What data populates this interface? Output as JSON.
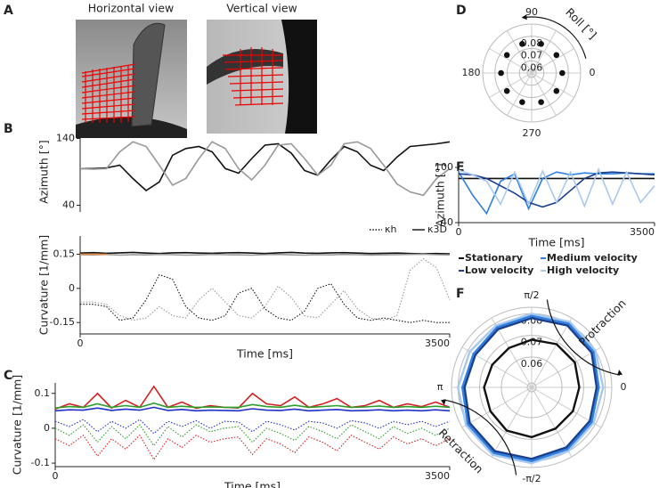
{
  "panel_labels": [
    "A",
    "B",
    "C",
    "D",
    "E",
    "F"
  ],
  "image_titles": [
    "Horizontal view",
    "Vertical view"
  ],
  "chart_data": [
    {
      "type": "line",
      "ylabel": "Azimuth [°]",
      "xlim": [
        0,
        3500
      ],
      "ylim": [
        30,
        150
      ],
      "yticks": [
        40,
        140
      ],
      "x": [
        0,
        125,
        250,
        375,
        500,
        625,
        750,
        875,
        1000,
        1125,
        1250,
        1375,
        1500,
        1625,
        1750,
        1875,
        2000,
        2125,
        2250,
        2375,
        2500,
        2625,
        2750,
        2875,
        3000,
        3125,
        3250,
        3375,
        3500
      ],
      "series": [
        {
          "color": "#111111",
          "values": [
            95,
            95,
            96,
            100,
            80,
            62,
            75,
            115,
            125,
            128,
            120,
            95,
            88,
            110,
            130,
            132,
            118,
            92,
            85,
            108,
            128,
            120,
            100,
            92,
            112,
            128,
            130,
            132,
            135
          ]
        },
        {
          "color": "#999999",
          "values": [
            95,
            94,
            95,
            120,
            135,
            128,
            100,
            70,
            80,
            110,
            135,
            125,
            95,
            78,
            100,
            130,
            132,
            110,
            85,
            100,
            132,
            135,
            125,
            100,
            72,
            60,
            55,
            80,
            95
          ]
        }
      ]
    },
    {
      "type": "line",
      "ylabel": "Curvature [1/mm]",
      "xlabel": "Time [ms]",
      "xlim": [
        0,
        3500
      ],
      "xticks": [
        0,
        3500
      ],
      "ylim": [
        -0.2,
        0.23
      ],
      "yticks": [
        -0.15,
        0,
        0.15
      ],
      "legend": [
        {
          "name": "κh",
          "dash": "dotted"
        },
        {
          "name": "κ3D",
          "dash": "solid"
        }
      ],
      "x": [
        0,
        125,
        250,
        375,
        500,
        625,
        750,
        875,
        1000,
        1125,
        1250,
        1375,
        1500,
        1625,
        1750,
        1875,
        2000,
        2125,
        2250,
        2375,
        2500,
        2625,
        2750,
        2875,
        3000,
        3125,
        3250,
        3375,
        3500
      ],
      "series": [
        {
          "color": "#111111",
          "dash": "solid",
          "values": [
            0.155,
            0.157,
            0.154,
            0.156,
            0.158,
            0.155,
            0.153,
            0.156,
            0.157,
            0.155,
            0.154,
            0.156,
            0.157,
            0.155,
            0.153,
            0.156,
            0.158,
            0.155,
            0.154,
            0.156,
            0.157,
            0.155,
            0.153,
            0.154,
            0.155,
            0.153,
            0.152,
            0.153,
            0.152
          ]
        },
        {
          "color": "#999999",
          "dash": "solid",
          "values": [
            0.148,
            0.147,
            0.149,
            0.146,
            0.148,
            0.147,
            0.149,
            0.148,
            0.146,
            0.147,
            0.149,
            0.148,
            0.147,
            0.146,
            0.148,
            0.149,
            0.147,
            0.146,
            0.148,
            0.147,
            0.149,
            0.148,
            0.146,
            0.147,
            0.148,
            0.149,
            0.15,
            0.148,
            0.147
          ]
        },
        {
          "color": "#e8873a",
          "dash": "solid",
          "values": [
            0.15,
            0.15,
            0.15,
            null,
            null,
            null,
            null,
            null,
            null,
            null,
            null,
            null,
            null,
            null,
            null,
            null,
            null,
            null,
            null,
            null,
            null,
            null,
            null,
            null,
            null,
            null,
            null,
            null,
            null
          ]
        },
        {
          "color": "#111111",
          "dash": "dotted",
          "values": [
            -0.07,
            -0.07,
            -0.08,
            -0.14,
            -0.13,
            -0.05,
            0.06,
            0.04,
            -0.08,
            -0.13,
            -0.14,
            -0.12,
            -0.02,
            0.0,
            -0.09,
            -0.13,
            -0.14,
            -0.1,
            0.0,
            0.02,
            -0.07,
            -0.13,
            -0.14,
            -0.13,
            -0.14,
            -0.15,
            -0.14,
            -0.15,
            -0.15
          ]
        },
        {
          "color": "#999999",
          "dash": "dotted",
          "values": [
            -0.06,
            -0.06,
            -0.07,
            -0.12,
            -0.14,
            -0.13,
            -0.08,
            -0.12,
            -0.13,
            -0.05,
            0.0,
            -0.06,
            -0.12,
            -0.13,
            -0.08,
            0.01,
            -0.04,
            -0.12,
            -0.13,
            -0.07,
            -0.01,
            -0.09,
            -0.13,
            -0.14,
            -0.12,
            0.08,
            0.13,
            0.09,
            -0.05
          ]
        }
      ]
    },
    {
      "type": "line",
      "ylabel": "Curvature [1/mm]",
      "xlabel": "Time [ms]",
      "xlim": [
        0,
        3500
      ],
      "xticks": [
        0,
        3500
      ],
      "ylim": [
        -0.11,
        0.13
      ],
      "yticks": [
        -0.1,
        0,
        0.1
      ],
      "x": [
        0,
        125,
        250,
        375,
        500,
        625,
        750,
        875,
        1000,
        1125,
        1250,
        1375,
        1500,
        1625,
        1750,
        1875,
        2000,
        2125,
        2250,
        2375,
        2500,
        2625,
        2750,
        2875,
        3000,
        3125,
        3250,
        3375,
        3500
      ],
      "series": [
        {
          "color": "#d42020",
          "dash": "solid",
          "values": [
            0.055,
            0.07,
            0.06,
            0.1,
            0.058,
            0.08,
            0.06,
            0.12,
            0.06,
            0.075,
            0.057,
            0.065,
            0.06,
            0.058,
            0.1,
            0.07,
            0.065,
            0.09,
            0.06,
            0.07,
            0.085,
            0.06,
            0.065,
            0.08,
            0.06,
            0.07,
            0.062,
            0.075,
            0.06
          ]
        },
        {
          "color": "#2ca02c",
          "dash": "solid",
          "values": [
            0.058,
            0.062,
            0.06,
            0.07,
            0.06,
            0.065,
            0.06,
            0.072,
            0.06,
            0.063,
            0.06,
            0.061,
            0.06,
            0.06,
            0.068,
            0.062,
            0.06,
            0.066,
            0.06,
            0.062,
            0.065,
            0.06,
            0.061,
            0.064,
            0.06,
            0.062,
            0.06,
            0.063,
            0.06
          ]
        },
        {
          "color": "#2030c8",
          "dash": "solid",
          "values": [
            0.05,
            0.053,
            0.052,
            0.058,
            0.051,
            0.055,
            0.052,
            0.06,
            0.051,
            0.054,
            0.05,
            0.052,
            0.051,
            0.05,
            0.056,
            0.052,
            0.051,
            0.055,
            0.05,
            0.052,
            0.054,
            0.05,
            0.051,
            0.053,
            0.05,
            0.052,
            0.05,
            0.053,
            0.05
          ]
        },
        {
          "color": "#2030c8",
          "dash": "dotted",
          "values": [
            0.02,
            0.005,
            0.025,
            -0.01,
            0.02,
            0.0,
            0.025,
            -0.015,
            0.02,
            0.005,
            0.022,
            0.0,
            0.02,
            0.018,
            -0.01,
            0.02,
            0.01,
            -0.005,
            0.02,
            0.015,
            0.0,
            0.022,
            0.015,
            0.0,
            0.02,
            0.01,
            0.02,
            0.005,
            0.02
          ]
        },
        {
          "color": "#2ca02c",
          "dash": "dotted",
          "values": [
            0.0,
            -0.02,
            0.01,
            -0.04,
            0.005,
            -0.03,
            0.01,
            -0.05,
            0.005,
            -0.025,
            0.01,
            -0.01,
            0.0,
            0.005,
            -0.04,
            0.0,
            -0.015,
            -0.035,
            0.005,
            -0.01,
            -0.03,
            0.01,
            -0.01,
            -0.03,
            0.005,
            -0.015,
            0.0,
            -0.02,
            0.0
          ]
        },
        {
          "color": "#d42020",
          "dash": "dotted",
          "values": [
            -0.03,
            -0.05,
            -0.02,
            -0.08,
            -0.03,
            -0.06,
            -0.02,
            -0.09,
            -0.03,
            -0.055,
            -0.02,
            -0.04,
            -0.03,
            -0.025,
            -0.075,
            -0.03,
            -0.045,
            -0.07,
            -0.025,
            -0.04,
            -0.065,
            -0.02,
            -0.04,
            -0.06,
            -0.025,
            -0.045,
            -0.03,
            -0.05,
            -0.03
          ]
        }
      ]
    },
    {
      "type": "polar-scatter",
      "annotation": "Roll [°]",
      "rlim": [
        0.05,
        0.09
      ],
      "rticks": [
        0.06,
        0.07,
        0.08
      ],
      "thetaticks": [
        0,
        90,
        180,
        270
      ],
      "color": "#111111",
      "theta": [
        0,
        36,
        72,
        108,
        144,
        180,
        216,
        252,
        288,
        324
      ],
      "r": [
        0.075,
        0.075,
        0.075,
        0.075,
        0.075,
        0.075,
        0.075,
        0.075,
        0.075,
        0.075
      ]
    },
    {
      "type": "line",
      "ylabel": "Azimuth [°]",
      "xlabel": "Time [ms]",
      "xlim": [
        0,
        3500
      ],
      "xticks": [
        0,
        3500
      ],
      "ylim": [
        40,
        100
      ],
      "yticks": [
        40,
        100
      ],
      "x": [
        0,
        250,
        500,
        750,
        1000,
        1250,
        1500,
        1750,
        2000,
        2250,
        2500,
        2750,
        3000,
        3250,
        3500
      ],
      "series": [
        {
          "name": "Stationary",
          "color": "#111111",
          "values": [
            88,
            88,
            88,
            88,
            88,
            88,
            88,
            88,
            88,
            88,
            88,
            88,
            88,
            88,
            88
          ]
        },
        {
          "name": "Medium velocity",
          "color": "#2f80e0",
          "values": [
            95,
            70,
            50,
            85,
            93,
            55,
            88,
            95,
            92,
            94,
            93,
            93,
            94,
            93,
            93
          ]
        },
        {
          "name": "Low velocity",
          "color": "#1a3f8f",
          "values": [
            93,
            92,
            88,
            80,
            72,
            62,
            57,
            62,
            75,
            88,
            94,
            95,
            94,
            93,
            92
          ]
        },
        {
          "name": "High velocity",
          "color": "#a8c8ef",
          "values": [
            97,
            92,
            85,
            60,
            95,
            60,
            96,
            62,
            95,
            58,
            98,
            60,
            95,
            62,
            80
          ]
        }
      ]
    },
    {
      "type": "polar-line",
      "annotations": [
        "Protraction",
        "Retraction"
      ],
      "rlim": [
        0.046,
        0.083
      ],
      "rticks": [
        0.06,
        0.07,
        0.08
      ],
      "thetaticks": [
        {
          "value": 0,
          "label": "0"
        },
        {
          "value": 90,
          "label": "π/2"
        },
        {
          "value": 180,
          "label": "π"
        },
        {
          "value": 270,
          "label": "-π/2"
        }
      ],
      "theta": [
        0,
        30,
        60,
        90,
        120,
        150,
        180,
        210,
        240,
        270,
        300,
        330
      ],
      "series": [
        {
          "color": "#a8c8ef",
          "values": [
            0.079,
            0.08,
            0.081,
            0.08,
            0.079,
            0.079,
            0.08,
            0.081,
            0.082,
            0.081,
            0.08,
            0.079
          ]
        },
        {
          "color": "#2f80e0",
          "values": [
            0.077,
            0.079,
            0.08,
            0.079,
            0.078,
            0.077,
            0.078,
            0.08,
            0.081,
            0.08,
            0.079,
            0.078
          ]
        },
        {
          "color": "#1a3f8f",
          "values": [
            0.076,
            0.078,
            0.079,
            0.078,
            0.077,
            0.076,
            0.077,
            0.079,
            0.08,
            0.079,
            0.078,
            0.077
          ]
        },
        {
          "color": "#111111",
          "values": [
            0.068,
            0.069,
            0.069,
            0.068,
            0.067,
            0.067,
            0.068,
            0.068,
            0.069,
            0.069,
            0.068,
            0.068
          ]
        }
      ]
    }
  ]
}
